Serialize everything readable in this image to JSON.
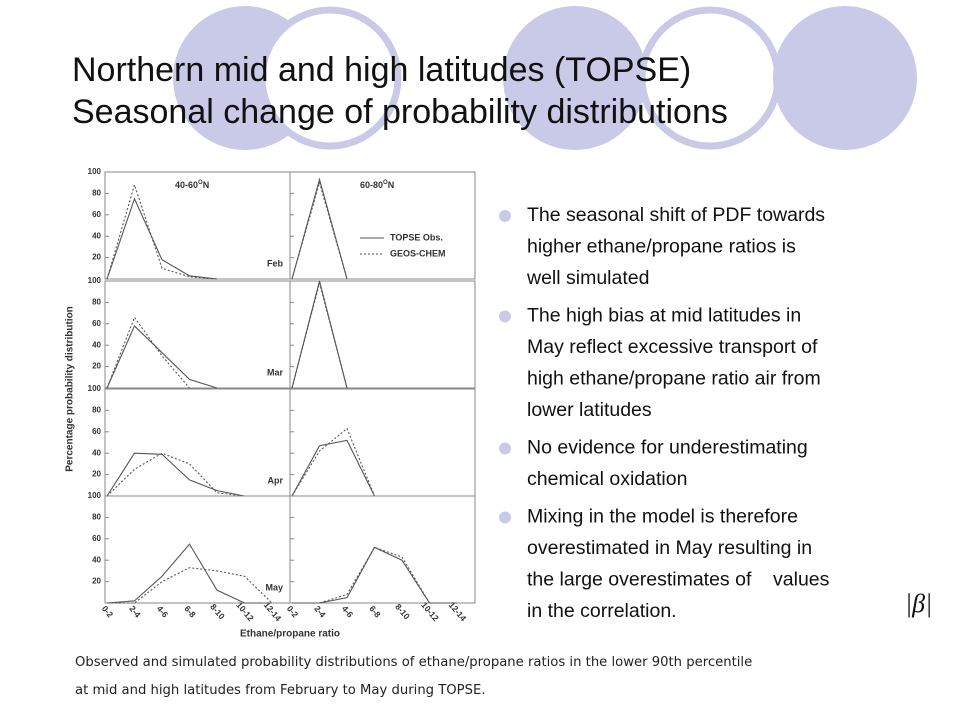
{
  "title": {
    "lines": [
      "Northern mid and high latitudes (TOPSE)",
      "Seasonal change of probability distributions"
    ]
  },
  "figure": {
    "type": "line",
    "y_label": "Percentage probability distribution",
    "x_label": "Ethane/propane ratio",
    "categories": [
      "0-2",
      "2-4",
      "4-6",
      "6-8",
      "8-10",
      "10-12",
      "12-14"
    ],
    "ylim": [
      0,
      100
    ],
    "yticks": [
      20,
      40,
      60,
      80,
      100
    ],
    "columns": [
      {
        "range": "40-60",
        "degree": "O",
        "hemisphere": "N"
      },
      {
        "range": "60-80",
        "degree": "O",
        "hemisphere": "N"
      }
    ],
    "legend": [
      {
        "name": "TOPSE Obs.",
        "style": "solid",
        "color": "#555555"
      },
      {
        "name": "GEOS-CHEM",
        "style": "dotted",
        "color": "#555555"
      }
    ],
    "rows": [
      {
        "month": "Feb",
        "panels": [
          {
            "obs": [
              0,
              75,
              18,
              3,
              0,
              null,
              null
            ],
            "model": [
              0,
              88,
              10,
              2,
              0,
              null,
              null
            ]
          },
          {
            "obs": [
              0,
              93,
              0,
              null,
              null,
              null,
              null
            ],
            "model": [
              0,
              90,
              0,
              null,
              null,
              null,
              null
            ]
          }
        ]
      },
      {
        "month": "Mar",
        "panels": [
          {
            "obs": [
              0,
              58,
              33,
              8,
              0,
              null,
              null
            ],
            "model": [
              0,
              66,
              30,
              0,
              null,
              null,
              null
            ]
          },
          {
            "obs": [
              0,
              100,
              0,
              null,
              null,
              null,
              null
            ],
            "model": [
              0,
              98,
              0,
              null,
              null,
              null,
              null
            ]
          }
        ]
      },
      {
        "month": "Apr",
        "panels": [
          {
            "obs": [
              0,
              40,
              39,
              15,
              5,
              0,
              null
            ],
            "model": [
              0,
              25,
              40,
              30,
              3,
              0,
              null
            ]
          },
          {
            "obs": [
              0,
              47,
              52,
              0,
              null,
              null,
              null
            ],
            "model": [
              0,
              42,
              63,
              0,
              null,
              null,
              null
            ]
          }
        ]
      },
      {
        "month": "May",
        "panels": [
          {
            "obs": [
              0,
              2,
              25,
              55,
              12,
              0,
              0
            ],
            "model": [
              0,
              0,
              20,
              33,
              30,
              25,
              0
            ]
          },
          {
            "obs": [
              0,
              0,
              5,
              52,
              40,
              0,
              0
            ],
            "model": [
              0,
              0,
              8,
              52,
              43,
              0,
              0
            ]
          }
        ]
      }
    ]
  },
  "bullets": [
    {
      "lines": [
        "The seasonal shift of PDF towards",
        "higher ethane/propane ratios is",
        "well simulated"
      ]
    },
    {
      "lines": [
        "The high bias at mid latitudes in",
        "May reflect excessive transport of",
        "high ethane/propane ratio air from",
        "lower latitudes"
      ]
    },
    {
      "lines": [
        "No evidence for underestimating",
        "chemical oxidation"
      ]
    },
    {
      "lines": [
        "Mixing in the model is therefore",
        "overestimated in May resulting in",
        "the large overestimates of    values",
        "in the correlation."
      ]
    }
  ],
  "beta_symbol": "|β|",
  "caption": {
    "lines": [
      "Observed and simulated probability distributions of ethane/propane ratios in the lower 90th percentile",
      "at mid and high latitudes from February to May during TOPSE."
    ]
  }
}
